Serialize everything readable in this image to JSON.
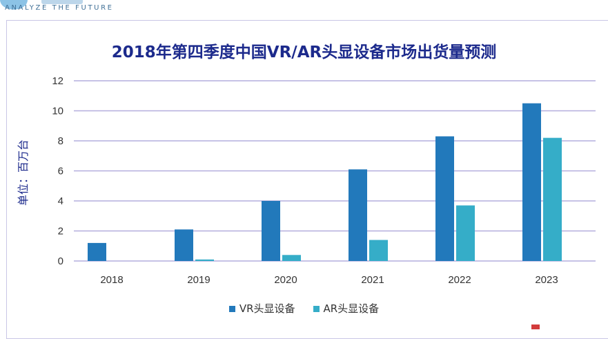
{
  "header": {
    "tagline": "ANALYZE THE FUTURE"
  },
  "chart_data": {
    "type": "bar",
    "title": "2018年第四季度中国VR/AR头显设备市场出货量预测",
    "ylabel": "单位：百万台",
    "xlabel": "",
    "categories": [
      "2018",
      "2019",
      "2020",
      "2021",
      "2022",
      "2023"
    ],
    "series": [
      {
        "name": "VR头显设备",
        "values": [
          1.2,
          2.1,
          4.0,
          6.1,
          8.3,
          10.5
        ],
        "color": "#2279bb"
      },
      {
        "name": "AR头显设备",
        "values": [
          0,
          0.1,
          0.4,
          1.4,
          3.7,
          8.2
        ],
        "color": "#35adc8"
      }
    ],
    "ylim": [
      0,
      12
    ],
    "yticks": [
      "0",
      "2",
      "4",
      "6",
      "8",
      "10",
      "12"
    ],
    "grid": true,
    "gridline_color": "#b4aede",
    "legend_position": "bottom"
  }
}
